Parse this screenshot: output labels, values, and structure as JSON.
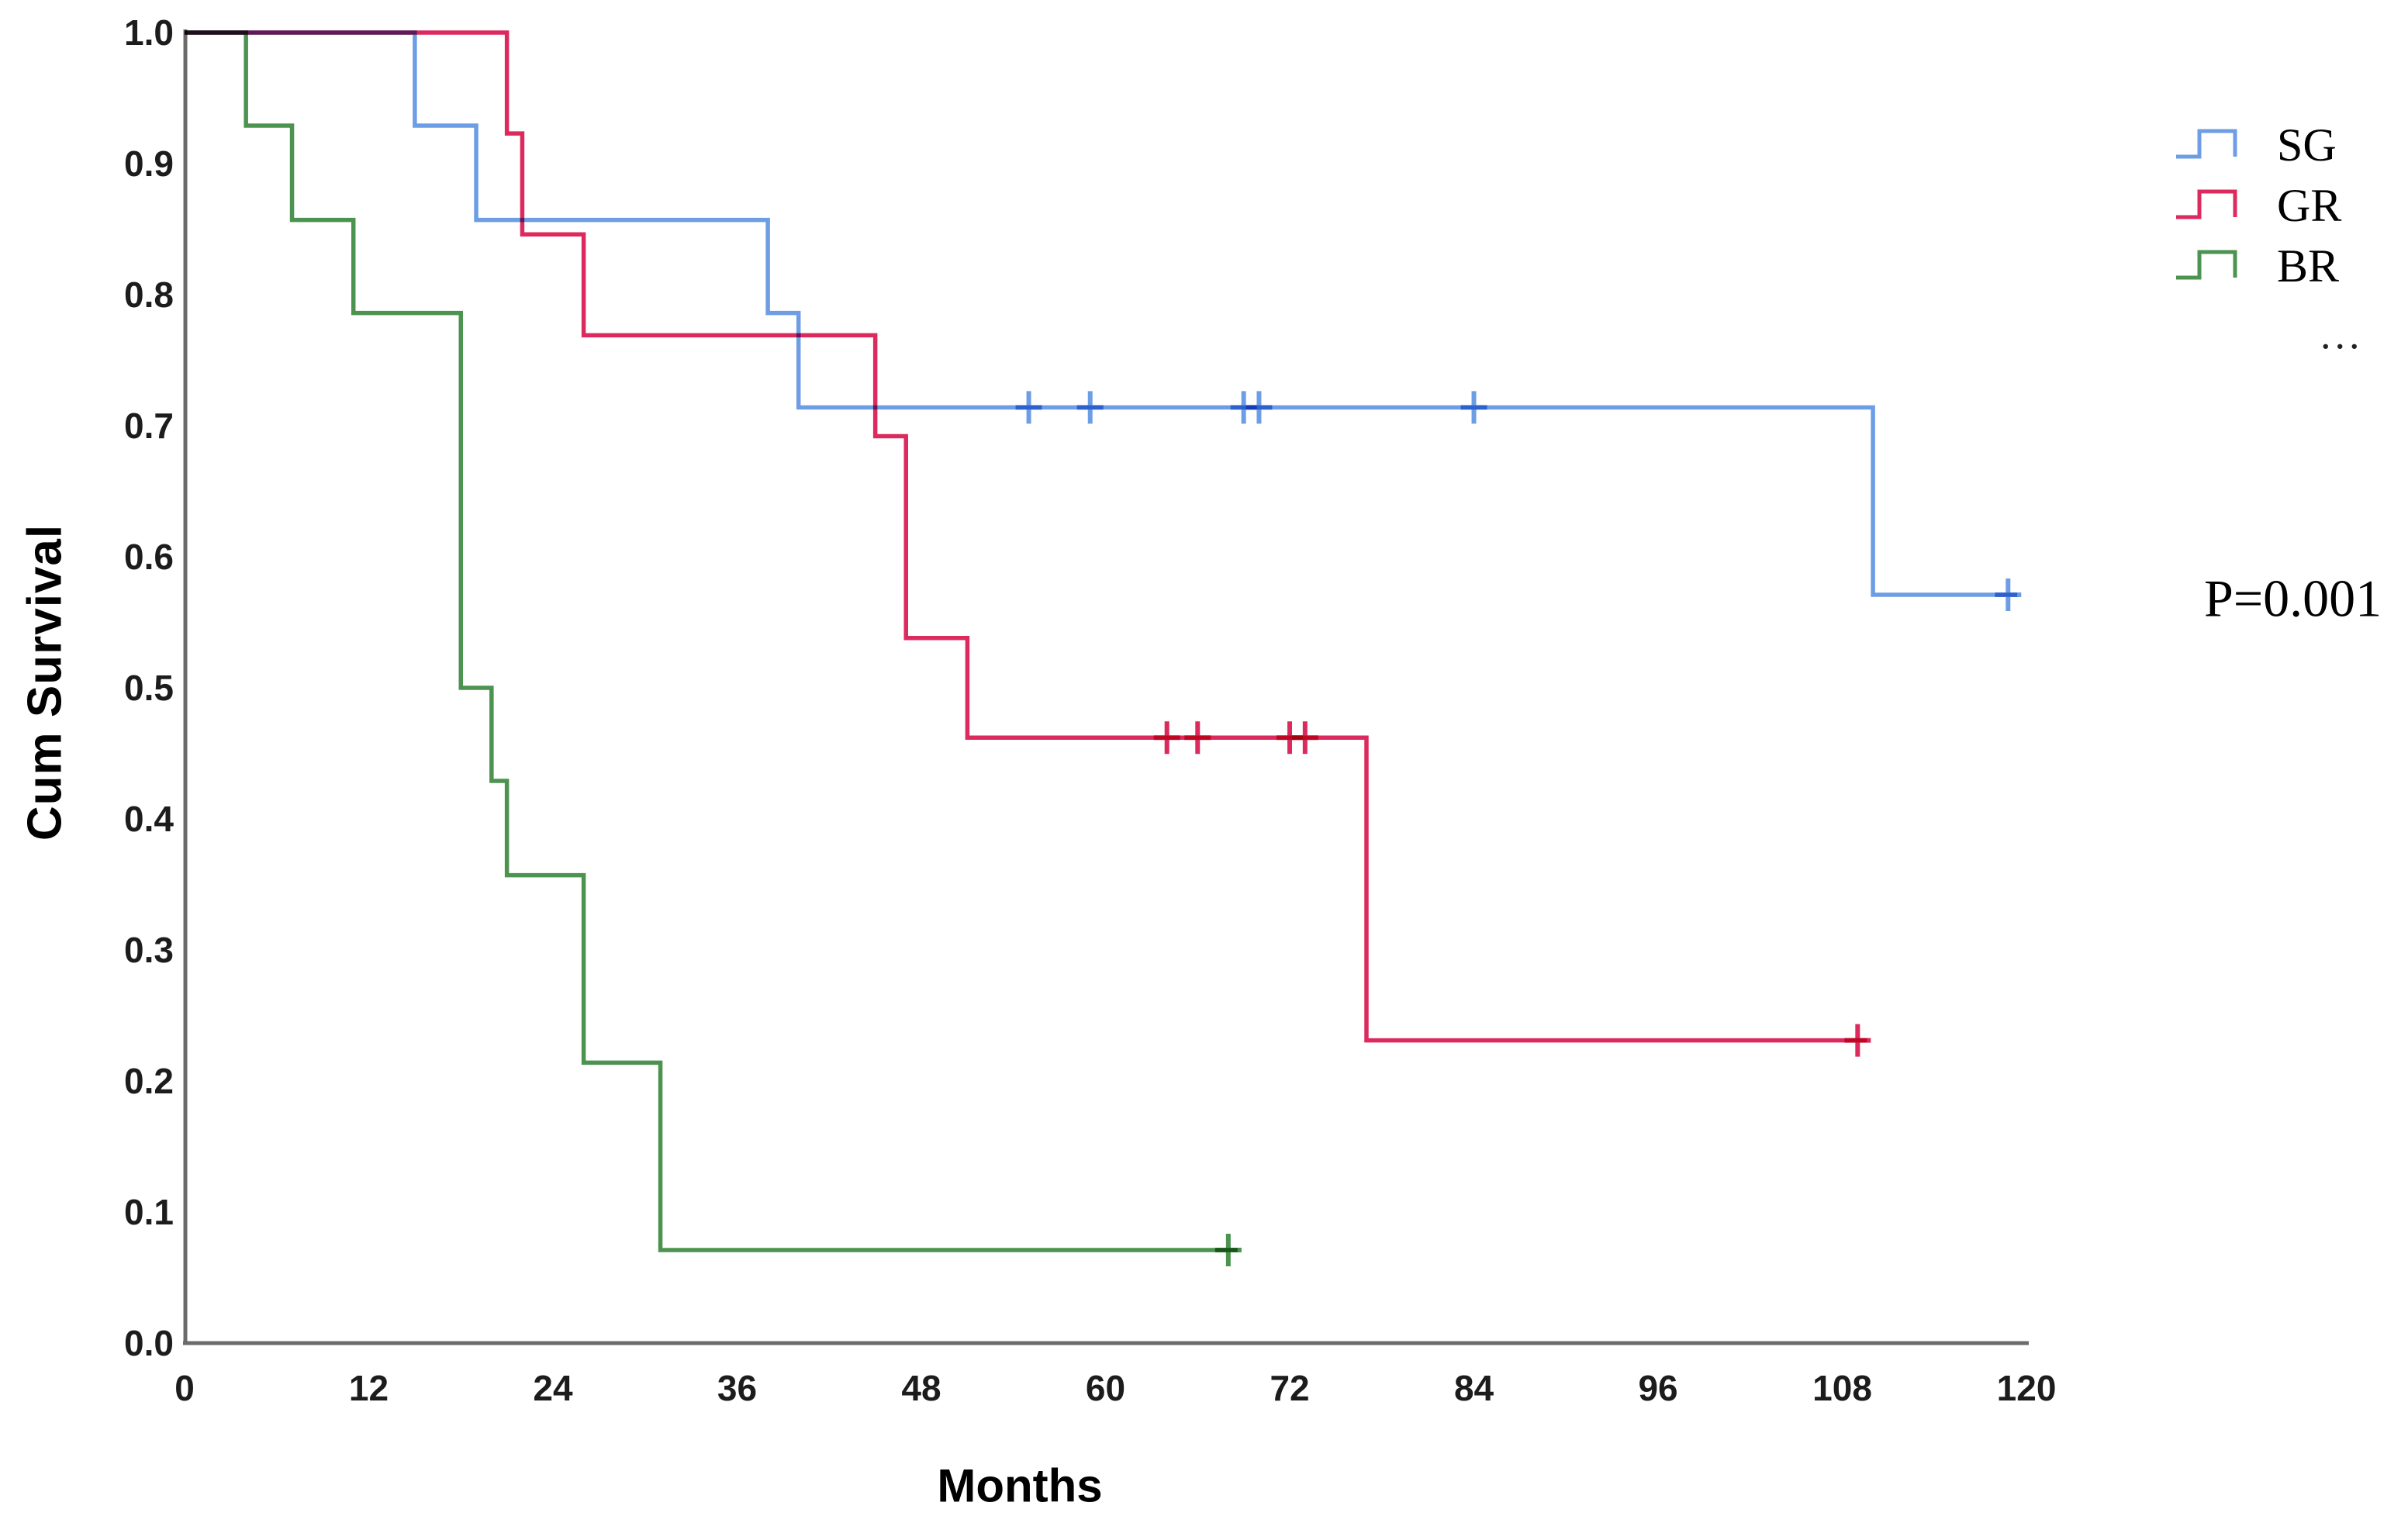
{
  "chart": {
    "y_axis_title": "Cum Survival",
    "x_axis_title": "Months",
    "p_value": "P=0.001",
    "legend": {
      "items": [
        {
          "label": "SG"
        },
        {
          "label": "GR"
        },
        {
          "label": "BR"
        }
      ],
      "ellipsis": "..."
    }
  },
  "chart_data": {
    "type": "line",
    "subtype": "kaplan-meier-step-survival",
    "title": "",
    "xlabel": "Months",
    "ylabel": "Cum Survival",
    "xlim": [
      0,
      120
    ],
    "ylim": [
      0.0,
      1.0
    ],
    "grid": false,
    "legend_position": "top-right-outside",
    "annotation": "P=0.001",
    "x_ticks": {
      "values": [
        0,
        12,
        24,
        36,
        48,
        60,
        72,
        84,
        96,
        108,
        120
      ],
      "labels": [
        "0",
        "12",
        "24",
        "36",
        "48",
        "60",
        "72",
        "84",
        "96",
        "108",
        "120"
      ]
    },
    "y_ticks": {
      "values": [
        0.0,
        0.1,
        0.2,
        0.3,
        0.4,
        0.5,
        0.6,
        0.7,
        0.8,
        0.9,
        1.0
      ],
      "labels": [
        "0.0",
        "0.1",
        "0.2",
        "0.3",
        "0.4",
        "0.5",
        "0.6",
        "0.7",
        "0.8",
        "0.9",
        "1.0"
      ]
    },
    "series": [
      {
        "name": "SG",
        "color": "#6D9DE4",
        "start": [
          0,
          1.0
        ],
        "steps": [
          [
            15,
            0.929
          ],
          [
            19,
            0.857
          ],
          [
            38,
            0.786
          ],
          [
            40,
            0.714
          ],
          [
            110,
            0.571
          ]
        ],
        "end_time": 119.4,
        "censors": [
          [
            55,
            0.714
          ],
          [
            59,
            0.714
          ],
          [
            69,
            0.714
          ],
          [
            70,
            0.714
          ],
          [
            84,
            0.714
          ],
          [
            118.8,
            0.571
          ]
        ]
      },
      {
        "name": "GR",
        "color": "#DC2A5E",
        "start": [
          0,
          1.0
        ],
        "steps": [
          [
            21,
            0.923
          ],
          [
            22,
            0.846
          ],
          [
            26,
            0.769
          ],
          [
            45,
            0.692
          ],
          [
            47,
            0.538
          ],
          [
            51,
            0.462
          ],
          [
            77,
            0.231
          ]
        ],
        "end_time": 109.6,
        "censors": [
          [
            64,
            0.462
          ],
          [
            66,
            0.462
          ],
          [
            72,
            0.462
          ],
          [
            73,
            0.462
          ],
          [
            109,
            0.231
          ]
        ]
      },
      {
        "name": "BR",
        "color": "#4D9350",
        "start": [
          0,
          1.0
        ],
        "steps": [
          [
            4,
            0.929
          ],
          [
            7,
            0.857
          ],
          [
            11,
            0.786
          ],
          [
            18,
            0.5
          ],
          [
            20,
            0.429
          ],
          [
            21,
            0.357
          ],
          [
            26,
            0.214
          ],
          [
            31,
            0.071
          ]
        ],
        "end_time": 68.6,
        "censors": [
          [
            68,
            0.071
          ]
        ]
      }
    ]
  }
}
